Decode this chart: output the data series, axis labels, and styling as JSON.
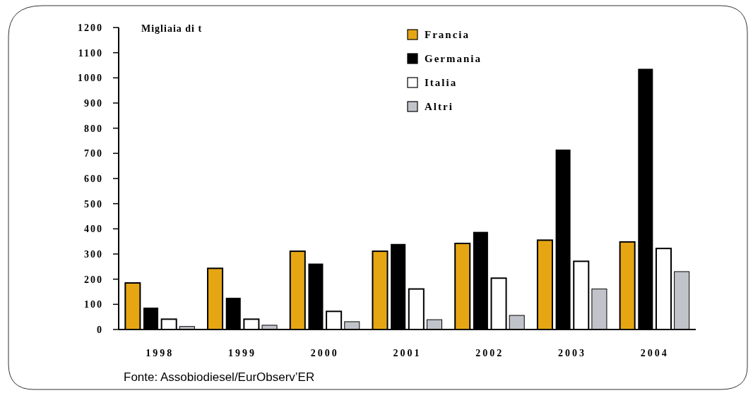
{
  "chart_data": {
    "type": "bar",
    "ylabel": "Migliaia di t",
    "categories": [
      "1998",
      "1999",
      "2000",
      "2001",
      "2002",
      "2003",
      "2004"
    ],
    "series": [
      {
        "name": "Francia",
        "color": "#e6a614",
        "values": [
          185,
          243,
          311,
          311,
          342,
          355,
          348
        ]
      },
      {
        "name": "Germania",
        "color": "#000000",
        "values": [
          87,
          126,
          262,
          340,
          388,
          715,
          1036
        ]
      },
      {
        "name": "Italia",
        "color": "#ffffff",
        "values": [
          41,
          41,
          72,
          161,
          204,
          271,
          322
        ]
      },
      {
        "name": "Altri",
        "color": "#c0c3c9",
        "values": [
          12,
          17,
          31,
          39,
          56,
          161,
          230
        ]
      }
    ],
    "ylim": [
      0,
      1200
    ],
    "yticks": [
      0,
      100,
      200,
      300,
      400,
      500,
      600,
      700,
      800,
      900,
      1000,
      1100,
      1200
    ],
    "grid": false,
    "legend": "top",
    "annotations": [
      "Fonte: Assobiodiesel/EurObserv’ER"
    ]
  }
}
